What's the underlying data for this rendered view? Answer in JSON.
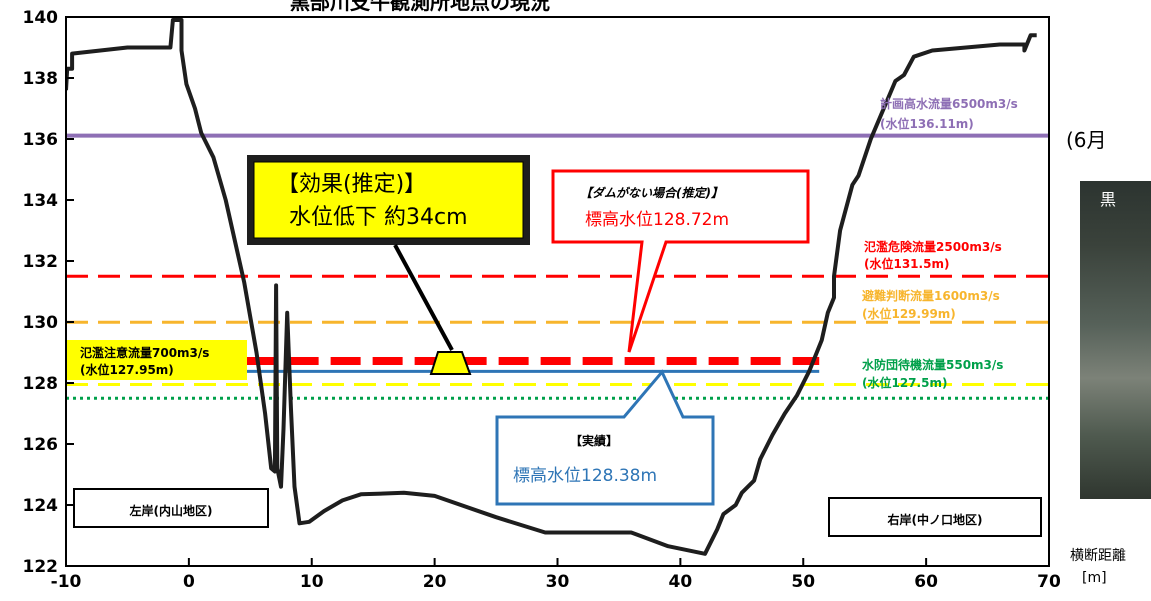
{
  "title": "黒部川支牛観測所地点の現況",
  "photo_date": "(6月",
  "photo_label": "黒",
  "xlabel_line1": "横断距離",
  "xlabel_line2": "[m]",
  "chart_data": {
    "type": "line",
    "xlim": [
      -10,
      70
    ],
    "ylim": [
      122,
      140
    ],
    "x_ticks": [
      -10,
      0,
      10,
      20,
      30,
      40,
      50,
      60,
      70
    ],
    "y_ticks": [
      122,
      124,
      126,
      128,
      130,
      132,
      134,
      136,
      138,
      140
    ],
    "grid": false,
    "cross_section": [
      [
        -10,
        137.6
      ],
      [
        -9.9,
        138.3
      ],
      [
        -9.5,
        138.3
      ],
      [
        -9.5,
        138.8
      ],
      [
        -5,
        139.0
      ],
      [
        -3.5,
        139.0
      ],
      [
        -1.5,
        139.0
      ],
      [
        -1.3,
        139.9
      ],
      [
        -0.6,
        139.9
      ],
      [
        -0.6,
        138.9
      ],
      [
        -0.2,
        137.8
      ],
      [
        0.5,
        137.0
      ],
      [
        1.0,
        136.2
      ],
      [
        2.0,
        135.4
      ],
      [
        3.0,
        134.0
      ],
      [
        4.5,
        131.3
      ],
      [
        5.5,
        129.0
      ],
      [
        6.2,
        127.0
      ],
      [
        6.7,
        125.2
      ],
      [
        7.0,
        125.1
      ],
      [
        7.1,
        131.2
      ],
      [
        7.2,
        125.2
      ],
      [
        7.5,
        124.6
      ],
      [
        7.7,
        126.5
      ],
      [
        8.0,
        130.3
      ],
      [
        8.3,
        127.2
      ],
      [
        8.6,
        124.6
      ],
      [
        9.0,
        123.4
      ],
      [
        9.8,
        123.45
      ],
      [
        11,
        123.8
      ],
      [
        12.5,
        124.15
      ],
      [
        14,
        124.35
      ],
      [
        17.5,
        124.4
      ],
      [
        20,
        124.3
      ],
      [
        25,
        123.6
      ],
      [
        29,
        123.1
      ],
      [
        36,
        123.1
      ],
      [
        39,
        122.65
      ],
      [
        42,
        122.4
      ],
      [
        43,
        123.2
      ],
      [
        43.5,
        123.7
      ],
      [
        44.5,
        124.0
      ],
      [
        45,
        124.4
      ],
      [
        46,
        124.8
      ],
      [
        46.5,
        125.5
      ],
      [
        47.5,
        126.3
      ],
      [
        48.5,
        127.0
      ],
      [
        49.5,
        127.6
      ],
      [
        50.5,
        128.4
      ],
      [
        51.5,
        129.4
      ],
      [
        52,
        130.3
      ],
      [
        52.5,
        130.8
      ],
      [
        52.5,
        131.5
      ],
      [
        53,
        133.0
      ],
      [
        54,
        134.5
      ],
      [
        54.5,
        134.8
      ],
      [
        55.5,
        136.0
      ],
      [
        57.5,
        137.9
      ],
      [
        58.2,
        138.1
      ],
      [
        59,
        138.7
      ],
      [
        60.5,
        138.9
      ],
      [
        66,
        139.1
      ],
      [
        68,
        139.1
      ],
      [
        68,
        138.9
      ],
      [
        68.5,
        139.4
      ],
      [
        69,
        139.4
      ]
    ],
    "levels": [
      {
        "name": "計画高水流量6500m3/s",
        "sub": "(水位136.11m)",
        "y": 136.11,
        "color": "#8e6fb5",
        "style": "solid",
        "x_range": [
          -10,
          70
        ]
      },
      {
        "name": "氾濫危険流量2500m3/s",
        "sub": "(水位131.5m)",
        "y": 131.5,
        "color": "#ff0000",
        "style": "dash",
        "x_range": [
          -10,
          70
        ]
      },
      {
        "name": "避難判断流量1600m3/s",
        "sub": "(水位129.99m)",
        "y": 129.99,
        "color": "#f7b52d",
        "style": "dash",
        "x_range": [
          -10,
          70
        ]
      },
      {
        "name": "氾濫注意流量700m3/s",
        "sub": "(水位127.95m)",
        "y": 127.95,
        "color": "#ffff00",
        "style": "dash",
        "x_range": [
          -10,
          70
        ]
      },
      {
        "name": "水防団待機流量550m3/s",
        "sub": "(水位127.5m)",
        "y": 127.5,
        "color": "#00a04a",
        "style": "dot",
        "x_range": [
          -10,
          70
        ]
      }
    ],
    "no_dam_level": {
      "y": 128.72,
      "color": "#ff0000",
      "x_range": [
        4.7,
        51.3
      ]
    },
    "actual_level": {
      "y": 128.38,
      "color": "#2e75b6",
      "x_range": [
        4.7,
        51.3
      ]
    },
    "callout_effect": {
      "title": "【効果(推定)】",
      "text": "水位低下 約34cm"
    },
    "callout_no_dam": {
      "title": "【ダムがない場合(推定)】",
      "text": "標高水位128.72m"
    },
    "callout_actual": {
      "title": "【実績】",
      "text": "標高水位128.38m"
    },
    "left_bank": "左岸(内山地区)",
    "right_bank": "右岸(中ノ口地区)"
  }
}
